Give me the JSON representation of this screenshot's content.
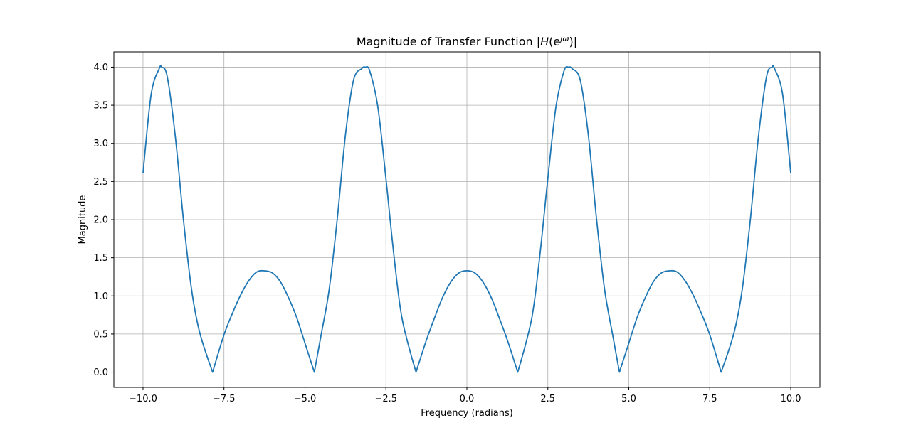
{
  "chart_data": {
    "type": "line",
    "title": "Magnitude of Transfer Function |H(e^{jω})|",
    "title_parts": {
      "prefix": "Magnitude of Transfer Function |",
      "H": "H",
      "paren_open": "(e",
      "sup": "jω",
      "paren_close": ")|"
    },
    "xlabel": "Frequency (radians)",
    "ylabel": "Magnitude",
    "xlim": [
      -10.9,
      10.9
    ],
    "ylim": [
      -0.2,
      4.2
    ],
    "grid": true,
    "line_color": "#1f77b4",
    "x_ticks": [
      -10.0,
      -7.5,
      -5.0,
      -2.5,
      0.0,
      2.5,
      5.0,
      7.5,
      10.0
    ],
    "x_tick_labels": [
      "−10.0",
      "−7.5",
      "−5.0",
      "−2.5",
      "0.0",
      "2.5",
      "5.0",
      "7.5",
      "10.0"
    ],
    "y_ticks": [
      0.0,
      0.5,
      1.0,
      1.5,
      2.0,
      2.5,
      3.0,
      3.5,
      4.0
    ],
    "y_tick_labels": [
      "0.0",
      "0.5",
      "1.0",
      "1.5",
      "2.0",
      "2.5",
      "3.0",
      "3.5",
      "4.0"
    ],
    "series": [
      {
        "x": [
          -10.0,
          -9.75,
          -9.5,
          -9.42,
          -9.25,
          -9.0,
          -8.75,
          -8.5,
          -8.25,
          -7.85,
          -7.5,
          -7.25,
          -7.0,
          -6.75,
          -6.5,
          -6.28,
          -6.0,
          -5.75,
          -5.5,
          -5.25,
          -5.0,
          -4.71,
          -4.5,
          -4.25,
          -4.0,
          -3.75,
          -3.5,
          -3.25,
          -3.14,
          -3.0,
          -2.75,
          -2.5,
          -2.25,
          -2.0,
          -1.57,
          -1.25,
          -1.0,
          -0.75,
          -0.5,
          -0.25,
          0.0,
          0.25,
          0.5,
          0.75,
          1.0,
          1.25,
          1.57,
          2.0,
          2.25,
          2.5,
          2.75,
          3.0,
          3.14,
          3.25,
          3.5,
          3.75,
          4.0,
          4.25,
          4.5,
          4.71,
          5.0,
          5.25,
          5.5,
          5.75,
          6.0,
          6.28,
          6.5,
          6.75,
          7.0,
          7.25,
          7.5,
          7.85,
          8.25,
          8.5,
          8.75,
          9.0,
          9.25,
          9.42,
          9.5,
          9.75,
          10.0
        ],
        "y": [
          2.61,
          3.64,
          3.98,
          4.0,
          3.87,
          3.08,
          1.99,
          1.08,
          0.52,
          0.0,
          0.49,
          0.76,
          1.0,
          1.19,
          1.31,
          1.33,
          1.3,
          1.18,
          0.97,
          0.71,
          0.38,
          0.0,
          0.49,
          1.09,
          2.02,
          3.11,
          3.83,
          3.98,
          4.0,
          3.95,
          3.48,
          2.54,
          1.52,
          0.7,
          0.0,
          0.42,
          0.71,
          0.98,
          1.18,
          1.3,
          1.33,
          1.3,
          1.18,
          0.98,
          0.71,
          0.42,
          0.0,
          0.7,
          1.52,
          2.54,
          3.48,
          3.95,
          4.0,
          3.98,
          3.83,
          3.11,
          2.02,
          1.09,
          0.49,
          0.0,
          0.38,
          0.71,
          0.97,
          1.18,
          1.3,
          1.33,
          1.31,
          1.19,
          1.0,
          0.76,
          0.49,
          0.0,
          0.52,
          1.08,
          1.99,
          3.08,
          3.87,
          4.0,
          3.98,
          3.64,
          2.61
        ]
      }
    ]
  }
}
